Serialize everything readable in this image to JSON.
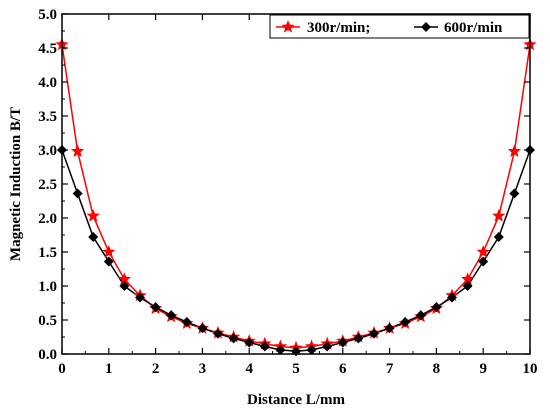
{
  "chart_data": {
    "type": "line",
    "xlabel": "Distance L/mm",
    "ylabel": "Magnetic Induction B/T",
    "xlim": [
      0,
      10
    ],
    "ylim": [
      0,
      5
    ],
    "xticks": [
      "0",
      "1",
      "2",
      "3",
      "4",
      "5",
      "6",
      "7",
      "8",
      "9",
      "10"
    ],
    "yticks": [
      "0.0",
      "0.5",
      "1.0",
      "1.5",
      "2.0",
      "2.5",
      "3.0",
      "3.5",
      "4.0",
      "4.5",
      "5.0"
    ],
    "grid": false,
    "legend_position": "top-right",
    "series": [
      {
        "name": "300r/min;",
        "color": "#ff0000",
        "marker": "star",
        "x": [
          0,
          0.333,
          0.667,
          1,
          1.333,
          1.667,
          2,
          2.333,
          2.667,
          3,
          3.333,
          3.667,
          4,
          4.333,
          4.667,
          5,
          5.333,
          5.667,
          6,
          6.333,
          6.667,
          7,
          7.333,
          7.667,
          8,
          8.333,
          8.667,
          9,
          9.333,
          9.667,
          10
        ],
        "y": [
          4.55,
          2.98,
          2.03,
          1.5,
          1.1,
          0.86,
          0.67,
          0.55,
          0.45,
          0.38,
          0.31,
          0.25,
          0.19,
          0.15,
          0.11,
          0.09,
          0.11,
          0.15,
          0.19,
          0.25,
          0.31,
          0.38,
          0.45,
          0.55,
          0.67,
          0.86,
          1.1,
          1.5,
          2.03,
          2.98,
          4.55
        ]
      },
      {
        "name": "600r/min",
        "color": "#000000",
        "marker": "diamond",
        "x": [
          0,
          0.333,
          0.667,
          1,
          1.333,
          1.667,
          2,
          2.333,
          2.667,
          3,
          3.333,
          3.667,
          4,
          4.333,
          4.667,
          5,
          5.333,
          5.667,
          6,
          6.333,
          6.667,
          7,
          7.333,
          7.667,
          8,
          8.333,
          8.667,
          9,
          9.333,
          9.667,
          10
        ],
        "y": [
          3.0,
          2.36,
          1.72,
          1.36,
          1.0,
          0.83,
          0.69,
          0.57,
          0.47,
          0.38,
          0.3,
          0.23,
          0.17,
          0.11,
          0.06,
          0.04,
          0.06,
          0.11,
          0.17,
          0.23,
          0.3,
          0.38,
          0.47,
          0.57,
          0.69,
          0.83,
          1.0,
          1.36,
          1.72,
          2.36,
          3.0
        ]
      }
    ]
  }
}
